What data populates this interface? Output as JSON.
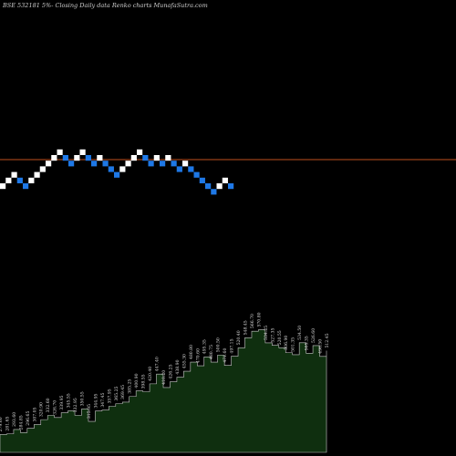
{
  "header": {
    "title": "BSE 532181 5%- Closing Daily data Renko charts MunafaSutra.com"
  },
  "colors": {
    "background": "#000000",
    "brick_up": "#ffffff",
    "brick_down": "#1e78e6",
    "close_line": "#c0501e",
    "area_fill": "#0f2f0f",
    "area_stroke": "#c8c8c8"
  },
  "chart_data": {
    "type": "renko",
    "brick_directions": [
      "up",
      "up",
      "up",
      "down",
      "down",
      "up",
      "up",
      "up",
      "up",
      "up",
      "up",
      "down",
      "down",
      "up",
      "up",
      "down",
      "down",
      "up",
      "down",
      "down",
      "down",
      "up",
      "up",
      "up",
      "up",
      "down",
      "down",
      "up",
      "down",
      "up",
      "down",
      "down",
      "up",
      "down",
      "down",
      "down",
      "down",
      "down",
      "up",
      "up",
      "down"
    ],
    "price_labels": [
      "279.60",
      "281.65",
      "293.60",
      "284.85",
      "296.65",
      "307.05",
      "320.90",
      "332.60",
      "326.70",
      "339.95",
      "345.55",
      "332.95",
      "350.55",
      "315.95",
      "344.95",
      "347.45",
      "357.95",
      "365.25",
      "369.45",
      "385.25",
      "400.90",
      "398.55",
      "420.40",
      "447.40",
      "410.20",
      "426.25",
      "438.90",
      "455.30",
      "480.80",
      "470.60",
      "495.35",
      "480.75",
      "500.50",
      "471.60",
      "497.15",
      "520.40",
      "548.45",
      "566.70",
      "570.80",
      "534.25",
      "527.35",
      "520.55",
      "506.90",
      "501.35",
      "534.50",
      "505.35",
      "526.60",
      "496.50",
      "512.45"
    ],
    "area_values": [
      279.6,
      281.65,
      293.6,
      284.85,
      296.65,
      307.05,
      320.9,
      332.6,
      326.7,
      339.95,
      345.55,
      332.95,
      350.55,
      315.95,
      344.95,
      347.45,
      357.95,
      365.25,
      369.45,
      385.25,
      400.9,
      398.55,
      420.4,
      447.4,
      410.2,
      426.25,
      438.9,
      455.3,
      480.8,
      470.6,
      495.35,
      480.75,
      500.5,
      471.6,
      497.15,
      520.4,
      548.45,
      566.7,
      570.8,
      534.25,
      527.35,
      520.55,
      506.9,
      501.35,
      534.5,
      505.35,
      526.6,
      496.5,
      512.45
    ]
  }
}
